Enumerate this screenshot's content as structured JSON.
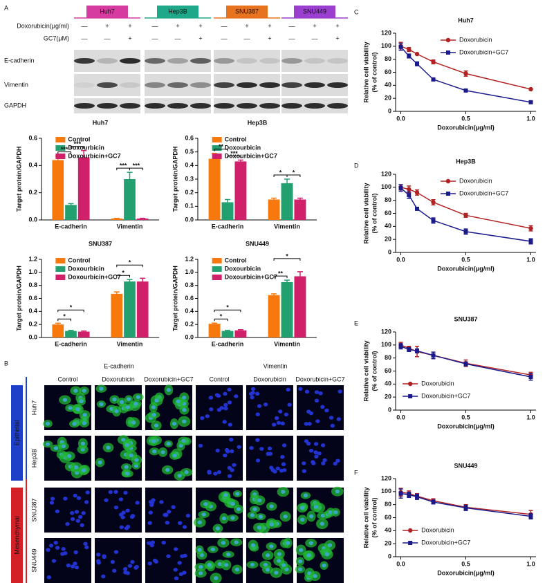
{
  "panels": [
    "A",
    "B",
    "C",
    "D",
    "E",
    "F"
  ],
  "blot": {
    "cell_lines": [
      {
        "name": "Huh7",
        "color": "#d63ba0"
      },
      {
        "name": "Hep3B",
        "color": "#1fa88a"
      },
      {
        "name": "SNU387",
        "color": "#e8731e"
      },
      {
        "name": "SNU449",
        "color": "#9b3fd0"
      }
    ],
    "row_labels": [
      "Doxorubicin(μg/ml)",
      "GC7(μM)"
    ],
    "doxo_signs": [
      "—",
      "+",
      "+"
    ],
    "gc7_signs": [
      "—",
      "—",
      "+"
    ],
    "proteins": [
      "E-cadherin",
      "Vimentin",
      "GAPDH"
    ]
  },
  "microscopy": {
    "stains": [
      {
        "name": "E-cadherin",
        "color": "#22c322"
      },
      {
        "name": "Vimentin",
        "color": "#c0201f"
      }
    ],
    "conditions": [
      "Control",
      "Doxorubicin",
      "Doxorubicin+GC7"
    ],
    "groups": [
      {
        "name": "Epithelial",
        "color": "#1e3fc8"
      },
      {
        "name": "Mesenchymal",
        "color": "#d42027"
      }
    ]
  },
  "chart_data": [
    {
      "type": "bar",
      "title": "Huh7",
      "ylabel": "Target protein/GAPDH",
      "categories": [
        "E-cadherin",
        "Vimentin"
      ],
      "ylim": [
        0,
        0.6
      ],
      "yticks": [
        {
          "value": 0,
          "label": "0.0"
        },
        0.2,
        0.4,
        0.6
      ],
      "series": [
        {
          "name": "Control",
          "color": "#f7790d",
          "values": [
            0.44,
            0.01
          ],
          "errors": [
            0.03,
            0.002
          ]
        },
        {
          "name": "Doxourbicin",
          "color": "#22a070",
          "values": [
            0.11,
            0.3
          ],
          "errors": [
            0.01,
            0.05
          ]
        },
        {
          "name": "Doxourbicin+GC7",
          "color": "#d0206a",
          "values": [
            0.46,
            0.01
          ],
          "errors": [
            0.05,
            0.002
          ]
        }
      ],
      "annotations": [
        {
          "label": "***",
          "category": 0,
          "series": [
            0,
            1
          ]
        },
        {
          "label": "***",
          "category": 0,
          "series": [
            1,
            2
          ]
        },
        {
          "label": "***",
          "category": 1,
          "series": [
            0,
            1
          ]
        },
        {
          "label": "***",
          "category": 1,
          "series": [
            1,
            2
          ]
        }
      ]
    },
    {
      "type": "bar",
      "title": "Hep3B",
      "ylabel": "Target protein/GAPDH",
      "categories": [
        "E-cadherin",
        "Vimentin"
      ],
      "ylim": [
        0,
        0.6
      ],
      "yticks": [
        {
          "value": 0,
          "label": "0.0"
        },
        0.1,
        0.2,
        0.3,
        0.4,
        0.5,
        0.6
      ],
      "series": [
        {
          "name": "Control",
          "color": "#f7790d",
          "values": [
            0.45,
            0.15
          ],
          "errors": [
            0.04,
            0.01
          ]
        },
        {
          "name": "Doxourbicin",
          "color": "#22a070",
          "values": [
            0.13,
            0.27
          ],
          "errors": [
            0.02,
            0.03
          ]
        },
        {
          "name": "Doxourbicin+GC7",
          "color": "#d0206a",
          "values": [
            0.43,
            0.15
          ],
          "errors": [
            0.01,
            0.01
          ]
        }
      ],
      "annotations": [
        {
          "label": "**",
          "category": 0,
          "series": [
            0,
            1
          ]
        },
        {
          "label": "***",
          "category": 0,
          "series": [
            1,
            2
          ]
        },
        {
          "label": "*",
          "category": 1,
          "series": [
            0,
            1
          ]
        },
        {
          "label": "*",
          "category": 1,
          "series": [
            1,
            2
          ]
        }
      ]
    },
    {
      "type": "bar",
      "title": "SNU387",
      "ylabel": "Target protein/GAPDH",
      "categories": [
        "E-cadherin",
        "Vimentin"
      ],
      "ylim": [
        0,
        1.2
      ],
      "yticks": [
        {
          "value": 0,
          "label": "0.0"
        },
        0.2,
        0.4,
        0.6,
        0.8,
        {
          "value": 1,
          "label": "1.0"
        },
        1.2
      ],
      "series": [
        {
          "name": "Control",
          "color": "#f7790d",
          "values": [
            0.2,
            0.67
          ],
          "errors": [
            0.02,
            0.03
          ]
        },
        {
          "name": "Doxourbicin",
          "color": "#22a070",
          "values": [
            0.1,
            0.86
          ],
          "errors": [
            0.01,
            0.03
          ]
        },
        {
          "name": "Doxourbicin+GC7",
          "color": "#d0206a",
          "values": [
            0.09,
            0.86
          ],
          "errors": [
            0.01,
            0.05
          ]
        }
      ],
      "annotations": [
        {
          "label": "*",
          "category": 0,
          "series": [
            0,
            1
          ]
        },
        {
          "label": "*",
          "category": 0,
          "series": [
            0,
            2
          ]
        },
        {
          "label": "*",
          "category": 1,
          "series": [
            0,
            1
          ]
        },
        {
          "label": "*",
          "category": 1,
          "series": [
            0,
            2
          ]
        }
      ]
    },
    {
      "type": "bar",
      "title": "SNU449",
      "ylabel": "Target protein/GAPDH",
      "categories": [
        "E-cadherin",
        "Vimentin"
      ],
      "ylim": [
        0,
        1.2
      ],
      "yticks": [
        {
          "value": 0,
          "label": "0.0"
        },
        0.2,
        0.4,
        0.6,
        0.8,
        {
          "value": 1,
          "label": "1.0"
        },
        1.2
      ],
      "series": [
        {
          "name": "Control",
          "color": "#f7790d",
          "values": [
            0.21,
            0.65
          ],
          "errors": [
            0.01,
            0.02
          ]
        },
        {
          "name": "Doxourbicin",
          "color": "#22a070",
          "values": [
            0.1,
            0.85
          ],
          "errors": [
            0.01,
            0.03
          ]
        },
        {
          "name": "Doxourbicin+GC7",
          "color": "#d0206a",
          "values": [
            0.11,
            0.94
          ],
          "errors": [
            0.01,
            0.07
          ]
        }
      ],
      "annotations": [
        {
          "label": "*",
          "category": 0,
          "series": [
            0,
            1
          ]
        },
        {
          "label": "*",
          "category": 0,
          "series": [
            0,
            2
          ]
        },
        {
          "label": "**",
          "category": 1,
          "series": [
            0,
            1
          ]
        },
        {
          "label": "*",
          "category": 1,
          "series": [
            0,
            2
          ]
        }
      ]
    },
    {
      "type": "line",
      "title": "Huh7",
      "ylabel": [
        "Relative cell viability",
        "(% of control)"
      ],
      "xlabel": "Doxorubicin(μg/ml)",
      "legend": "top-right",
      "x": [
        0,
        0.0625,
        0.125,
        0.25,
        0.5,
        1
      ],
      "xlim": [
        -0.04,
        1.04
      ],
      "xticks": [
        {
          "value": 0,
          "label": "0.0"
        },
        0.5,
        {
          "value": 1,
          "label": "1.0"
        }
      ],
      "ylim": [
        0,
        120
      ],
      "yticks": [
        0,
        20,
        40,
        60,
        80,
        100,
        120
      ],
      "series": [
        {
          "name": "Doxorubicin",
          "color": "#b22222",
          "marker": "circle",
          "values": [
            100,
            95,
            88,
            76,
            58,
            34
          ],
          "errors": [
            6,
            3,
            1,
            3,
            4,
            1
          ]
        },
        {
          "name": "Doxorubicin+GC7",
          "color": "#1a1a8c",
          "marker": "square",
          "values": [
            99,
            85,
            73,
            49,
            32,
            14
          ],
          "errors": [
            5,
            3,
            3,
            1,
            1,
            1
          ]
        }
      ]
    },
    {
      "type": "line",
      "title": "Hep3B",
      "ylabel": [
        "Relative cell viability",
        "(% of control)"
      ],
      "xlabel": "Doxorubicin(μg/ml)",
      "legend": "top-right",
      "x": [
        0,
        0.0625,
        0.125,
        0.25,
        0.5,
        1
      ],
      "xlim": [
        -0.04,
        1.04
      ],
      "xticks": [
        {
          "value": 0,
          "label": "0.0"
        },
        0.5,
        {
          "value": 1,
          "label": "1.0"
        }
      ],
      "ylim": [
        0,
        120
      ],
      "yticks": [
        0,
        20,
        40,
        60,
        80,
        100,
        120
      ],
      "series": [
        {
          "name": "Doxorubicin",
          "color": "#b22222",
          "marker": "circle",
          "values": [
            100,
            97,
            92,
            77,
            57,
            37
          ],
          "errors": [
            4,
            5,
            4,
            4,
            3,
            4
          ]
        },
        {
          "name": "Doxorubicin+GC7",
          "color": "#1a1a8c",
          "marker": "square",
          "values": [
            99,
            88,
            67,
            49,
            32,
            17
          ],
          "errors": [
            5,
            5,
            2,
            4,
            4,
            4
          ]
        }
      ]
    },
    {
      "type": "line",
      "title": "SNU387",
      "ylabel": [
        "Relative cell viability",
        "(% of control)"
      ],
      "xlabel": "Doxorubicin(μg/ml)",
      "legend": "bottom-left",
      "x": [
        0,
        0.0625,
        0.125,
        0.25,
        0.5,
        1
      ],
      "xlim": [
        -0.04,
        1.04
      ],
      "xticks": [
        {
          "value": 0,
          "label": "0.0"
        },
        0.5,
        {
          "value": 1,
          "label": "1.0"
        }
      ],
      "ylim": [
        0,
        120
      ],
      "yticks": [
        0,
        20,
        40,
        60,
        80,
        100,
        120
      ],
      "series": [
        {
          "name": "Doxorubicin",
          "color": "#b22222",
          "marker": "circle",
          "values": [
            100,
            95,
            90,
            84,
            72,
            54
          ],
          "errors": [
            4,
            3,
            8,
            5,
            5,
            4
          ]
        },
        {
          "name": "Doxorubicin+GC7",
          "color": "#1a1a8c",
          "marker": "square",
          "values": [
            98,
            93,
            91,
            84,
            71,
            51
          ],
          "errors": [
            4,
            3,
            3,
            5,
            3,
            5
          ]
        }
      ]
    },
    {
      "type": "line",
      "title": "SNU449",
      "ylabel": [
        "Relative cell viability",
        "(% of control)"
      ],
      "xlabel": "Doxorubicin(μg/ml)",
      "legend": "bottom-left",
      "x": [
        0,
        0.0625,
        0.125,
        0.25,
        0.5,
        1
      ],
      "xlim": [
        -0.04,
        1.04
      ],
      "xticks": [
        {
          "value": 0,
          "label": "0.0"
        },
        0.5,
        {
          "value": 1,
          "label": "1.0"
        }
      ],
      "ylim": [
        0,
        120
      ],
      "yticks": [
        0,
        20,
        40,
        60,
        80,
        100,
        120
      ],
      "series": [
        {
          "name": "Doxorubicin",
          "color": "#b22222",
          "marker": "circle",
          "values": [
            99,
            97,
            93,
            86,
            76,
            65
          ],
          "errors": [
            6,
            4,
            4,
            3,
            4,
            6
          ]
        },
        {
          "name": "Doxorubicin+GC7",
          "color": "#1a1a8c",
          "marker": "square",
          "values": [
            97,
            95,
            92,
            84,
            75,
            62
          ],
          "errors": [
            7,
            4,
            4,
            3,
            4,
            4
          ]
        }
      ]
    }
  ]
}
